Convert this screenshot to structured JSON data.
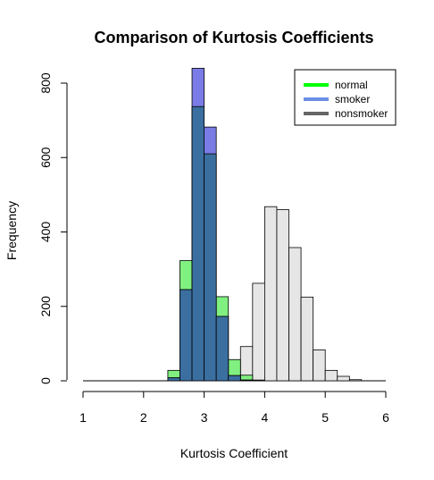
{
  "chart_data": {
    "type": "bar",
    "subtype": "overlaid-histogram",
    "title": "Comparison of Kurtosis Coefficients",
    "xlabel": "Kurtosis Coefficient",
    "ylabel": "Frequency",
    "xlim": [
      1,
      6
    ],
    "ylim": [
      0,
      840
    ],
    "x_ticks": [
      1,
      2,
      3,
      4,
      5,
      6
    ],
    "x_tick_labels": [
      "1",
      "2",
      "3",
      "4",
      "5",
      "6"
    ],
    "y_ticks": [
      0,
      200,
      400,
      600,
      800
    ],
    "y_tick_labels": [
      "0",
      "200",
      "400",
      "600",
      "800"
    ],
    "bin_width": 0.2,
    "legend": {
      "position": "top-right",
      "entries": [
        {
          "label": "normal",
          "color": "#00ff00"
        },
        {
          "label": "smoker",
          "color": "#6b8ee6"
        },
        {
          "label": "nonsmoker",
          "color": "#666666"
        }
      ]
    },
    "series": [
      {
        "name": "nonsmoker",
        "fill": "#e6e6e6",
        "bins": [
          {
            "x0": 3.2,
            "x1": 3.4,
            "value": 3
          },
          {
            "x0": 3.4,
            "x1": 3.6,
            "value": 12
          },
          {
            "x0": 3.6,
            "x1": 3.8,
            "value": 92
          },
          {
            "x0": 3.8,
            "x1": 4.0,
            "value": 262
          },
          {
            "x0": 4.0,
            "x1": 4.2,
            "value": 468
          },
          {
            "x0": 4.2,
            "x1": 4.4,
            "value": 460
          },
          {
            "x0": 4.4,
            "x1": 4.6,
            "value": 358
          },
          {
            "x0": 4.6,
            "x1": 4.8,
            "value": 225
          },
          {
            "x0": 4.8,
            "x1": 5.0,
            "value": 83
          },
          {
            "x0": 5.0,
            "x1": 5.2,
            "value": 28
          },
          {
            "x0": 5.2,
            "x1": 5.4,
            "value": 12
          },
          {
            "x0": 5.4,
            "x1": 5.6,
            "value": 3
          }
        ]
      },
      {
        "name": "normal",
        "fill": "#80f080",
        "bins": [
          {
            "x0": 2.4,
            "x1": 2.6,
            "value": 28
          },
          {
            "x0": 2.6,
            "x1": 2.8,
            "value": 323
          },
          {
            "x0": 2.8,
            "x1": 3.0,
            "value": 737
          },
          {
            "x0": 3.0,
            "x1": 3.2,
            "value": 610
          },
          {
            "x0": 3.2,
            "x1": 3.4,
            "value": 226
          },
          {
            "x0": 3.4,
            "x1": 3.6,
            "value": 57
          },
          {
            "x0": 3.6,
            "x1": 3.8,
            "value": 15
          },
          {
            "x0": 3.8,
            "x1": 4.0,
            "value": 2
          }
        ]
      },
      {
        "name": "smoker",
        "fill": "#7b7be6",
        "bins": [
          {
            "x0": 2.4,
            "x1": 2.6,
            "value": 8
          },
          {
            "x0": 2.6,
            "x1": 2.8,
            "value": 245
          },
          {
            "x0": 2.8,
            "x1": 3.0,
            "value": 840
          },
          {
            "x0": 3.0,
            "x1": 3.2,
            "value": 682
          },
          {
            "x0": 3.2,
            "x1": 3.4,
            "value": 173
          },
          {
            "x0": 3.4,
            "x1": 3.6,
            "value": 14
          },
          {
            "x0": 3.6,
            "x1": 3.8,
            "value": 2
          }
        ]
      },
      {
        "name": "overlap",
        "fill": "#3b6fa0",
        "bins": [
          {
            "x0": 2.4,
            "x1": 2.6,
            "value": 8
          },
          {
            "x0": 2.6,
            "x1": 2.8,
            "value": 245
          },
          {
            "x0": 2.8,
            "x1": 3.0,
            "value": 737
          },
          {
            "x0": 3.0,
            "x1": 3.2,
            "value": 610
          },
          {
            "x0": 3.2,
            "x1": 3.4,
            "value": 173
          },
          {
            "x0": 3.4,
            "x1": 3.6,
            "value": 14
          },
          {
            "x0": 3.6,
            "x1": 3.8,
            "value": 2
          }
        ]
      }
    ]
  }
}
